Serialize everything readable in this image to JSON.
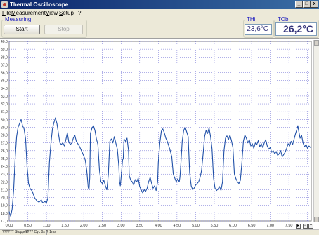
{
  "window": {
    "title": "Thermal Oscilloscope",
    "app_icon": "thermometer-icon"
  },
  "window_buttons": [
    "_",
    "□",
    "x"
  ],
  "menu": [
    {
      "label": "File",
      "accel": "F",
      "rest": "ile"
    },
    {
      "label": "Measurement",
      "accel": "M",
      "rest": "easurement"
    },
    {
      "label": "View",
      "accel": "V",
      "rest": "iew"
    },
    {
      "label": "Setup",
      "accel": "S",
      "rest": "etup"
    },
    {
      "label": "?",
      "accel": "",
      "rest": "?"
    }
  ],
  "measuring": {
    "legend": "Measuring",
    "start_label": "Start",
    "stop_label": "Stop"
  },
  "readouts": {
    "thi": {
      "legend": "THi",
      "value": "23,6°C"
    },
    "tob": {
      "legend": "TOb",
      "value": "26,2°C"
    }
  },
  "colors": {
    "trace": "#2050a8",
    "grid": "#6060d0",
    "readout_text": "#33337a",
    "title_bar": "#0a246a"
  },
  "status": {
    "items": [
      "?????? Stopped",
      "???? Cyc 0s",
      "? 1ms"
    ]
  },
  "chart_data": {
    "type": "line",
    "xlim": [
      0,
      8.1
    ],
    "ylim": [
      17,
      40
    ],
    "x_ticks": [
      "0,00",
      "0,50",
      "1,00",
      "1,50",
      "2,00",
      "2,50",
      "3,00",
      "3,50",
      "4,00",
      "4,50",
      "5,00",
      "5,50",
      "6,00",
      "6,50",
      "7,00",
      "7,50",
      "8,00"
    ],
    "y_ticks": [
      "17,0",
      "18,0",
      "19,0",
      "20,0",
      "21,0",
      "22,0",
      "23,0",
      "24,0",
      "25,0",
      "26,0",
      "27,0",
      "28,0",
      "29,0",
      "30,0",
      "31,0",
      "32,0",
      "33,0",
      "34,0",
      "35,0",
      "36,0",
      "37,0",
      "38,0",
      "39,0",
      "40,0"
    ],
    "series": [
      {
        "values": [
          [
            0.0,
            18.2
          ],
          [
            0.04,
            17.6
          ],
          [
            0.08,
            18.5
          ],
          [
            0.12,
            21.0
          ],
          [
            0.16,
            25.0
          ],
          [
            0.2,
            27.8
          ],
          [
            0.24,
            29.0
          ],
          [
            0.28,
            29.5
          ],
          [
            0.32,
            30.0
          ],
          [
            0.36,
            29.2
          ],
          [
            0.4,
            28.8
          ],
          [
            0.44,
            27.5
          ],
          [
            0.48,
            24.0
          ],
          [
            0.52,
            21.8
          ],
          [
            0.56,
            21.2
          ],
          [
            0.62,
            20.8
          ],
          [
            0.68,
            20.0
          ],
          [
            0.74,
            19.6
          ],
          [
            0.8,
            19.4
          ],
          [
            0.86,
            19.7
          ],
          [
            0.9,
            19.3
          ],
          [
            0.96,
            19.5
          ],
          [
            1.0,
            19.3
          ],
          [
            1.04,
            20.0
          ],
          [
            1.08,
            24.5
          ],
          [
            1.12,
            27.0
          ],
          [
            1.16,
            28.8
          ],
          [
            1.2,
            29.6
          ],
          [
            1.24,
            30.2
          ],
          [
            1.28,
            29.5
          ],
          [
            1.32,
            28.2
          ],
          [
            1.36,
            27.0
          ],
          [
            1.4,
            26.8
          ],
          [
            1.44,
            27.0
          ],
          [
            1.48,
            26.6
          ],
          [
            1.52,
            27.4
          ],
          [
            1.56,
            28.3
          ],
          [
            1.6,
            27.1
          ],
          [
            1.64,
            26.8
          ],
          [
            1.68,
            27.0
          ],
          [
            1.72,
            27.6
          ],
          [
            1.76,
            28.0
          ],
          [
            1.8,
            27.2
          ],
          [
            1.84,
            26.9
          ],
          [
            1.88,
            26.6
          ],
          [
            1.92,
            26.2
          ],
          [
            1.96,
            25.8
          ],
          [
            2.0,
            25.3
          ],
          [
            2.04,
            24.8
          ],
          [
            2.08,
            23.5
          ],
          [
            2.12,
            21.3
          ],
          [
            2.14,
            21.0
          ],
          [
            2.16,
            22.5
          ],
          [
            2.18,
            28.2
          ],
          [
            2.22,
            28.9
          ],
          [
            2.26,
            29.2
          ],
          [
            2.3,
            28.6
          ],
          [
            2.34,
            27.5
          ],
          [
            2.38,
            26.8
          ],
          [
            2.42,
            23.5
          ],
          [
            2.46,
            22.0
          ],
          [
            2.5,
            21.8
          ],
          [
            2.54,
            22.2
          ],
          [
            2.58,
            21.5
          ],
          [
            2.62,
            21.0
          ],
          [
            2.66,
            23.0
          ],
          [
            2.7,
            27.2
          ],
          [
            2.74,
            27.5
          ],
          [
            2.78,
            27.0
          ],
          [
            2.82,
            27.8
          ],
          [
            2.86,
            27.0
          ],
          [
            2.9,
            26.2
          ],
          [
            2.94,
            24.0
          ],
          [
            2.96,
            22.0
          ],
          [
            2.98,
            21.5
          ],
          [
            3.0,
            22.5
          ],
          [
            3.04,
            24.8
          ],
          [
            3.06,
            25.0
          ],
          [
            3.08,
            27.5
          ],
          [
            3.12,
            27.2
          ],
          [
            3.16,
            27.6
          ],
          [
            3.2,
            26.0
          ],
          [
            3.22,
            22.8
          ],
          [
            3.26,
            22.2
          ],
          [
            3.3,
            22.0
          ],
          [
            3.34,
            21.6
          ],
          [
            3.38,
            22.3
          ],
          [
            3.42,
            22.0
          ],
          [
            3.46,
            22.5
          ],
          [
            3.5,
            21.4
          ],
          [
            3.54,
            21.0
          ],
          [
            3.58,
            20.6
          ],
          [
            3.62,
            21.0
          ],
          [
            3.66,
            20.8
          ],
          [
            3.7,
            21.2
          ],
          [
            3.74,
            22.0
          ],
          [
            3.78,
            22.6
          ],
          [
            3.82,
            21.8
          ],
          [
            3.86,
            21.2
          ],
          [
            3.9,
            21.5
          ],
          [
            3.94,
            20.9
          ],
          [
            3.98,
            22.0
          ],
          [
            4.0,
            24.5
          ],
          [
            4.04,
            27.0
          ],
          [
            4.08,
            28.5
          ],
          [
            4.12,
            28.8
          ],
          [
            4.16,
            28.3
          ],
          [
            4.2,
            27.6
          ],
          [
            4.24,
            27.2
          ],
          [
            4.28,
            26.6
          ],
          [
            4.32,
            26.0
          ],
          [
            4.36,
            25.2
          ],
          [
            4.4,
            23.0
          ],
          [
            4.44,
            22.5
          ],
          [
            4.48,
            22.0
          ],
          [
            4.52,
            22.4
          ],
          [
            4.56,
            22.0
          ],
          [
            4.58,
            22.6
          ],
          [
            4.6,
            24.0
          ],
          [
            4.64,
            27.2
          ],
          [
            4.68,
            28.6
          ],
          [
            4.72,
            29.0
          ],
          [
            4.76,
            28.4
          ],
          [
            4.8,
            27.8
          ],
          [
            4.84,
            23.2
          ],
          [
            4.88,
            21.5
          ],
          [
            4.92,
            21.0
          ],
          [
            4.96,
            21.2
          ],
          [
            5.0,
            21.6
          ],
          [
            5.04,
            21.8
          ],
          [
            5.08,
            22.0
          ],
          [
            5.12,
            22.6
          ],
          [
            5.16,
            23.5
          ],
          [
            5.2,
            25.5
          ],
          [
            5.24,
            27.8
          ],
          [
            5.28,
            28.6
          ],
          [
            5.32,
            28.2
          ],
          [
            5.36,
            28.9
          ],
          [
            5.4,
            27.8
          ],
          [
            5.44,
            26.2
          ],
          [
            5.48,
            22.5
          ],
          [
            5.52,
            21.2
          ],
          [
            5.56,
            20.9
          ],
          [
            5.6,
            21.1
          ],
          [
            5.64,
            21.4
          ],
          [
            5.68,
            20.9
          ],
          [
            5.72,
            22.0
          ],
          [
            5.76,
            26.0
          ],
          [
            5.8,
            27.6
          ],
          [
            5.84,
            27.9
          ],
          [
            5.88,
            27.4
          ],
          [
            5.92,
            28.0
          ],
          [
            5.96,
            27.3
          ],
          [
            6.0,
            26.4
          ],
          [
            6.04,
            23.0
          ],
          [
            6.08,
            22.4
          ],
          [
            6.12,
            22.0
          ],
          [
            6.16,
            21.8
          ],
          [
            6.2,
            22.2
          ],
          [
            6.24,
            24.5
          ],
          [
            6.28,
            27.2
          ],
          [
            6.32,
            28.0
          ],
          [
            6.36,
            27.6
          ],
          [
            6.4,
            27.0
          ],
          [
            6.44,
            27.4
          ],
          [
            6.48,
            26.6
          ],
          [
            6.52,
            26.9
          ],
          [
            6.56,
            26.3
          ],
          [
            6.6,
            27.0
          ],
          [
            6.64,
            26.8
          ],
          [
            6.68,
            27.3
          ],
          [
            6.72,
            26.5
          ],
          [
            6.76,
            26.9
          ],
          [
            6.8,
            26.4
          ],
          [
            6.84,
            27.0
          ],
          [
            6.88,
            27.4
          ],
          [
            6.92,
            26.6
          ],
          [
            6.96,
            26.2
          ],
          [
            7.0,
            26.4
          ],
          [
            7.04,
            25.8
          ],
          [
            7.08,
            26.0
          ],
          [
            7.12,
            25.6
          ],
          [
            7.16,
            25.9
          ],
          [
            7.2,
            25.4
          ],
          [
            7.24,
            25.6
          ],
          [
            7.28,
            26.0
          ],
          [
            7.32,
            25.2
          ],
          [
            7.36,
            25.5
          ],
          [
            7.4,
            25.8
          ],
          [
            7.44,
            26.3
          ],
          [
            7.48,
            26.9
          ],
          [
            7.52,
            26.6
          ],
          [
            7.56,
            27.2
          ],
          [
            7.6,
            26.8
          ],
          [
            7.64,
            27.5
          ],
          [
            7.68,
            28.2
          ],
          [
            7.72,
            28.8
          ],
          [
            7.74,
            29.2
          ],
          [
            7.76,
            28.6
          ],
          [
            7.8,
            27.6
          ],
          [
            7.84,
            28.0
          ],
          [
            7.88,
            27.0
          ],
          [
            7.92,
            26.5
          ],
          [
            7.96,
            26.8
          ],
          [
            8.0,
            26.3
          ],
          [
            8.04,
            26.6
          ],
          [
            8.08,
            26.4
          ]
        ]
      }
    ],
    "grid": true
  }
}
